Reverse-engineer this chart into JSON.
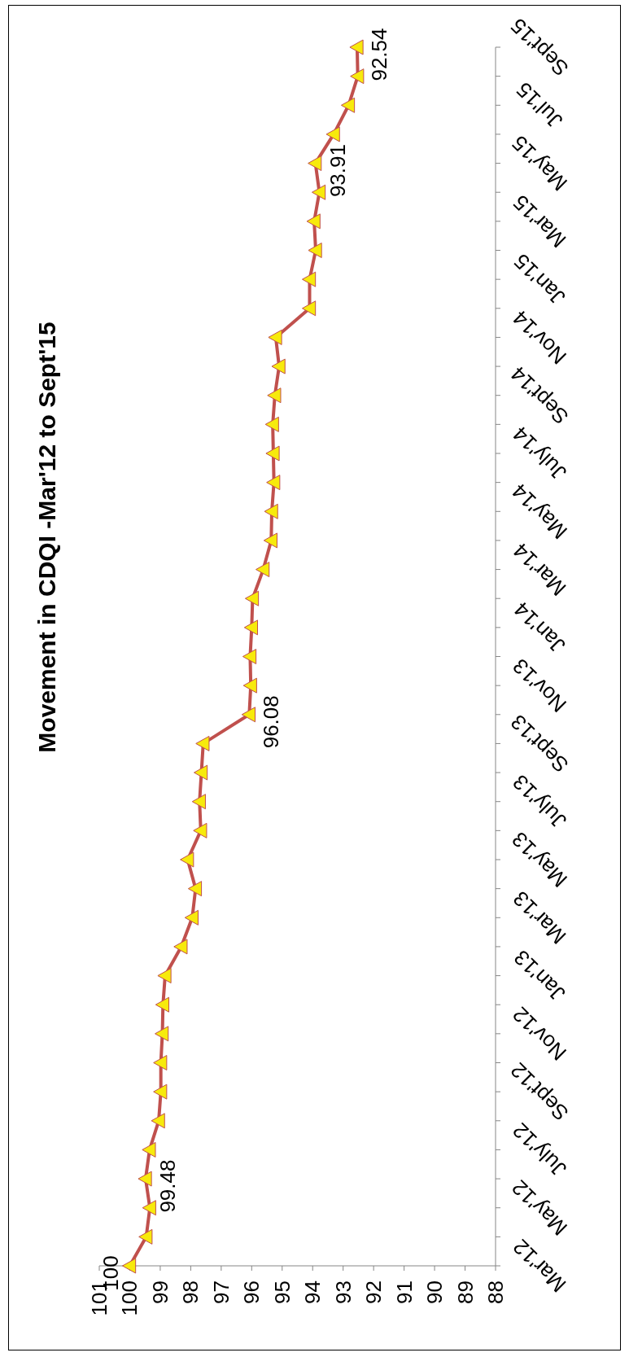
{
  "chart_data": {
    "type": "line",
    "title": "Movement in CDQI -Mar'12 to Sept'15",
    "orientation": "horizontal",
    "categories": [
      "Sept'15",
      null,
      "Jul'15",
      null,
      "May'15",
      null,
      "Mar'15",
      null,
      "Jan'15",
      null,
      "Nov'14",
      null,
      "Sept'14",
      null,
      "July'14",
      null,
      "May'14",
      null,
      "Mar'14",
      null,
      "Jan'14",
      null,
      "Nov'13",
      null,
      "Sept'13",
      null,
      "July'13",
      null,
      "May'13",
      null,
      "Mar'13",
      null,
      "Jan'13",
      null,
      "Nov'12",
      null,
      "Sept'12",
      null,
      "July'12",
      null,
      "May'12",
      null,
      "Mar'12"
    ],
    "series": [
      {
        "color": "#c0504d",
        "values": [
          92.54,
          92.52,
          92.82,
          93.31,
          93.91,
          93.78,
          93.95,
          93.9,
          94.1,
          94.1,
          95.21,
          95.1,
          95.24,
          95.31,
          95.29,
          95.27,
          95.34,
          95.36,
          95.62,
          95.97,
          96.0,
          96.05,
          96.03,
          96.08,
          97.59,
          97.65,
          97.71,
          97.67,
          98.1,
          97.84,
          97.95,
          98.31,
          98.84,
          98.91,
          98.93,
          98.98,
          98.98,
          99.05,
          99.35,
          99.48,
          99.34,
          99.46,
          100
        ],
        "value_labels": [
          "92.54",
          null,
          null,
          null,
          "93.91",
          null,
          null,
          null,
          null,
          null,
          null,
          null,
          null,
          null,
          null,
          null,
          null,
          null,
          null,
          null,
          null,
          null,
          null,
          "96.08",
          null,
          null,
          null,
          null,
          null,
          null,
          null,
          null,
          null,
          null,
          null,
          null,
          null,
          null,
          null,
          "99.48",
          null,
          null,
          "100"
        ]
      }
    ],
    "xlim": [
      101,
      88
    ],
    "xticks": [
      101,
      100,
      99,
      98,
      97,
      96,
      95,
      94,
      93,
      92,
      91,
      90,
      89,
      88
    ],
    "marker": "triangle",
    "grid": false,
    "legend": false
  }
}
